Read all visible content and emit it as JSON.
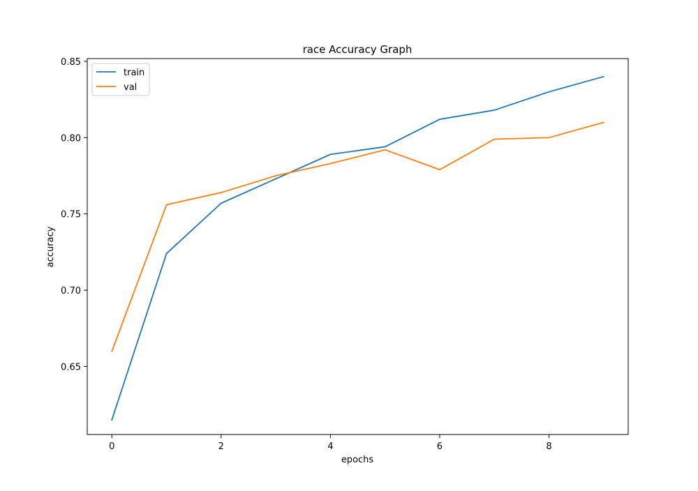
{
  "chart_data": {
    "type": "line",
    "title": "race Accuracy Graph",
    "xlabel": "epochs",
    "ylabel": "accuracy",
    "x": [
      0,
      1,
      2,
      3,
      4,
      5,
      6,
      7,
      8,
      9
    ],
    "xlim": [
      -0.45,
      9.45
    ],
    "ylim": [
      0.6054,
      0.8518
    ],
    "xticks": [
      0,
      2,
      4,
      6,
      8
    ],
    "yticks": [
      0.65,
      0.7,
      0.75,
      0.8,
      0.85
    ],
    "xtick_labels": [
      "0",
      "2",
      "4",
      "6",
      "8"
    ],
    "ytick_labels": [
      "0.65",
      "0.70",
      "0.75",
      "0.80",
      "0.85"
    ],
    "grid": false,
    "legend_position": "top-left",
    "series": [
      {
        "name": "train",
        "color": "#1f77b4",
        "values": [
          0.615,
          0.724,
          0.757,
          0.773,
          0.789,
          0.794,
          0.812,
          0.818,
          0.83,
          0.84
        ]
      },
      {
        "name": "val",
        "color": "#ff7f0e",
        "values": [
          0.66,
          0.756,
          0.764,
          0.775,
          0.783,
          0.792,
          0.779,
          0.799,
          0.8,
          0.81
        ]
      }
    ]
  }
}
